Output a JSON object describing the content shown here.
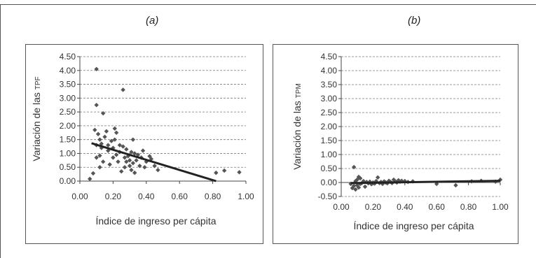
{
  "panels": [
    {
      "label": "(a)"
    },
    {
      "label": "(b)"
    }
  ],
  "chart_data": [
    {
      "type": "scatter",
      "ylabel_main": "Variación de las",
      "ylabel_small": "TPF",
      "xlabel": "Índice de ingreso per cápita",
      "xlim": [
        0,
        1
      ],
      "ylim": [
        0,
        4.5
      ],
      "xticks": [
        "0.00",
        "0.20",
        "0.40",
        "0.60",
        "0.80",
        "1.00"
      ],
      "yticks": [
        "0.00",
        "0.50",
        "1.00",
        "1.50",
        "2.00",
        "2.50",
        "3.00",
        "3.50",
        "4.00",
        "4.50"
      ],
      "grid": "horizontal-dashed",
      "marker_color": "#555555",
      "trend": {
        "x": [
          0.07,
          0.82
        ],
        "y": [
          1.37,
          0.0
        ]
      },
      "points": [
        [
          0.06,
          0.08
        ],
        [
          0.08,
          0.28
        ],
        [
          0.09,
          1.85
        ],
        [
          0.1,
          4.05
        ],
        [
          0.1,
          2.75
        ],
        [
          0.1,
          1.3
        ],
        [
          0.1,
          0.85
        ],
        [
          0.11,
          1.7
        ],
        [
          0.12,
          1.5
        ],
        [
          0.12,
          0.92
        ],
        [
          0.12,
          0.5
        ],
        [
          0.13,
          1.35
        ],
        [
          0.13,
          1.2
        ],
        [
          0.14,
          2.45
        ],
        [
          0.14,
          0.7
        ],
        [
          0.15,
          1.6
        ],
        [
          0.16,
          1.8
        ],
        [
          0.17,
          1.1
        ],
        [
          0.17,
          1.3
        ],
        [
          0.18,
          0.6
        ],
        [
          0.19,
          1.45
        ],
        [
          0.2,
          0.85
        ],
        [
          0.2,
          1.2
        ],
        [
          0.21,
          1.9
        ],
        [
          0.21,
          1.5
        ],
        [
          0.22,
          0.95
        ],
        [
          0.22,
          1.75
        ],
        [
          0.23,
          0.7
        ],
        [
          0.24,
          1.05
        ],
        [
          0.24,
          1.3
        ],
        [
          0.25,
          0.35
        ],
        [
          0.26,
          3.3
        ],
        [
          0.26,
          1.25
        ],
        [
          0.27,
          0.85
        ],
        [
          0.27,
          0.5
        ],
        [
          0.28,
          1.15
        ],
        [
          0.28,
          0.7
        ],
        [
          0.29,
          0.9
        ],
        [
          0.3,
          0.55
        ],
        [
          0.3,
          0.75
        ],
        [
          0.31,
          1.05
        ],
        [
          0.31,
          0.4
        ],
        [
          0.32,
          1.5
        ],
        [
          0.32,
          0.65
        ],
        [
          0.33,
          0.3
        ],
        [
          0.33,
          1.0
        ],
        [
          0.34,
          0.75
        ],
        [
          0.35,
          0.95
        ],
        [
          0.36,
          0.55
        ],
        [
          0.37,
          0.85
        ],
        [
          0.38,
          1.1
        ],
        [
          0.39,
          0.5
        ],
        [
          0.4,
          0.7
        ],
        [
          0.42,
          0.9
        ],
        [
          0.43,
          0.8
        ],
        [
          0.45,
          0.55
        ],
        [
          0.47,
          0.4
        ],
        [
          0.82,
          0.3
        ],
        [
          0.87,
          0.38
        ],
        [
          0.96,
          0.32
        ]
      ]
    },
    {
      "type": "scatter",
      "ylabel_main": "Variación de las",
      "ylabel_small": "TPM",
      "xlabel": "Índice de ingreso per cápita",
      "xlim": [
        0,
        1
      ],
      "ylim": [
        -0.5,
        4.5
      ],
      "xticks": [
        "0.00",
        "0.20",
        "0.40",
        "0.60",
        "0.80",
        "1.00"
      ],
      "yticks": [
        "-0.50",
        "0.00",
        "0.50",
        "1.00",
        "1.50",
        "2.00",
        "2.50",
        "3.00",
        "3.50",
        "4.00",
        "4.50"
      ],
      "grid": "horizontal-dashed",
      "marker_color": "#555555",
      "trend": {
        "x": [
          0.06,
          1.0
        ],
        "y": [
          -0.02,
          0.06
        ]
      },
      "points": [
        [
          0.06,
          -0.05
        ],
        [
          0.07,
          -0.2
        ],
        [
          0.08,
          -0.12
        ],
        [
          0.08,
          0.55
        ],
        [
          0.09,
          -0.25
        ],
        [
          0.09,
          0.05
        ],
        [
          0.1,
          -0.1
        ],
        [
          0.1,
          0.1
        ],
        [
          0.11,
          -0.18
        ],
        [
          0.11,
          0.2
        ],
        [
          0.12,
          -0.05
        ],
        [
          0.12,
          0.15
        ],
        [
          0.13,
          -0.02
        ],
        [
          0.14,
          0.05
        ],
        [
          0.15,
          -0.15
        ],
        [
          0.16,
          0.02
        ],
        [
          0.17,
          -0.03
        ],
        [
          0.18,
          0.03
        ],
        [
          0.19,
          -0.06
        ],
        [
          0.2,
          0.0
        ],
        [
          0.21,
          -0.04
        ],
        [
          0.22,
          0.05
        ],
        [
          0.23,
          0.18
        ],
        [
          0.24,
          -0.02
        ],
        [
          0.25,
          0.02
        ],
        [
          0.26,
          -0.05
        ],
        [
          0.27,
          0.04
        ],
        [
          0.28,
          0.0
        ],
        [
          0.29,
          -0.03
        ],
        [
          0.3,
          0.06
        ],
        [
          0.31,
          0.02
        ],
        [
          0.32,
          -0.02
        ],
        [
          0.33,
          0.1
        ],
        [
          0.34,
          0.04
        ],
        [
          0.35,
          0.0
        ],
        [
          0.36,
          0.08
        ],
        [
          0.37,
          0.03
        ],
        [
          0.38,
          0.06
        ],
        [
          0.4,
          0.05
        ],
        [
          0.42,
          0.02
        ],
        [
          0.45,
          0.04
        ],
        [
          0.6,
          -0.05
        ],
        [
          0.72,
          -0.1
        ],
        [
          0.82,
          0.04
        ],
        [
          0.88,
          0.06
        ],
        [
          0.97,
          0.03
        ],
        [
          1.0,
          0.1
        ]
      ]
    }
  ]
}
